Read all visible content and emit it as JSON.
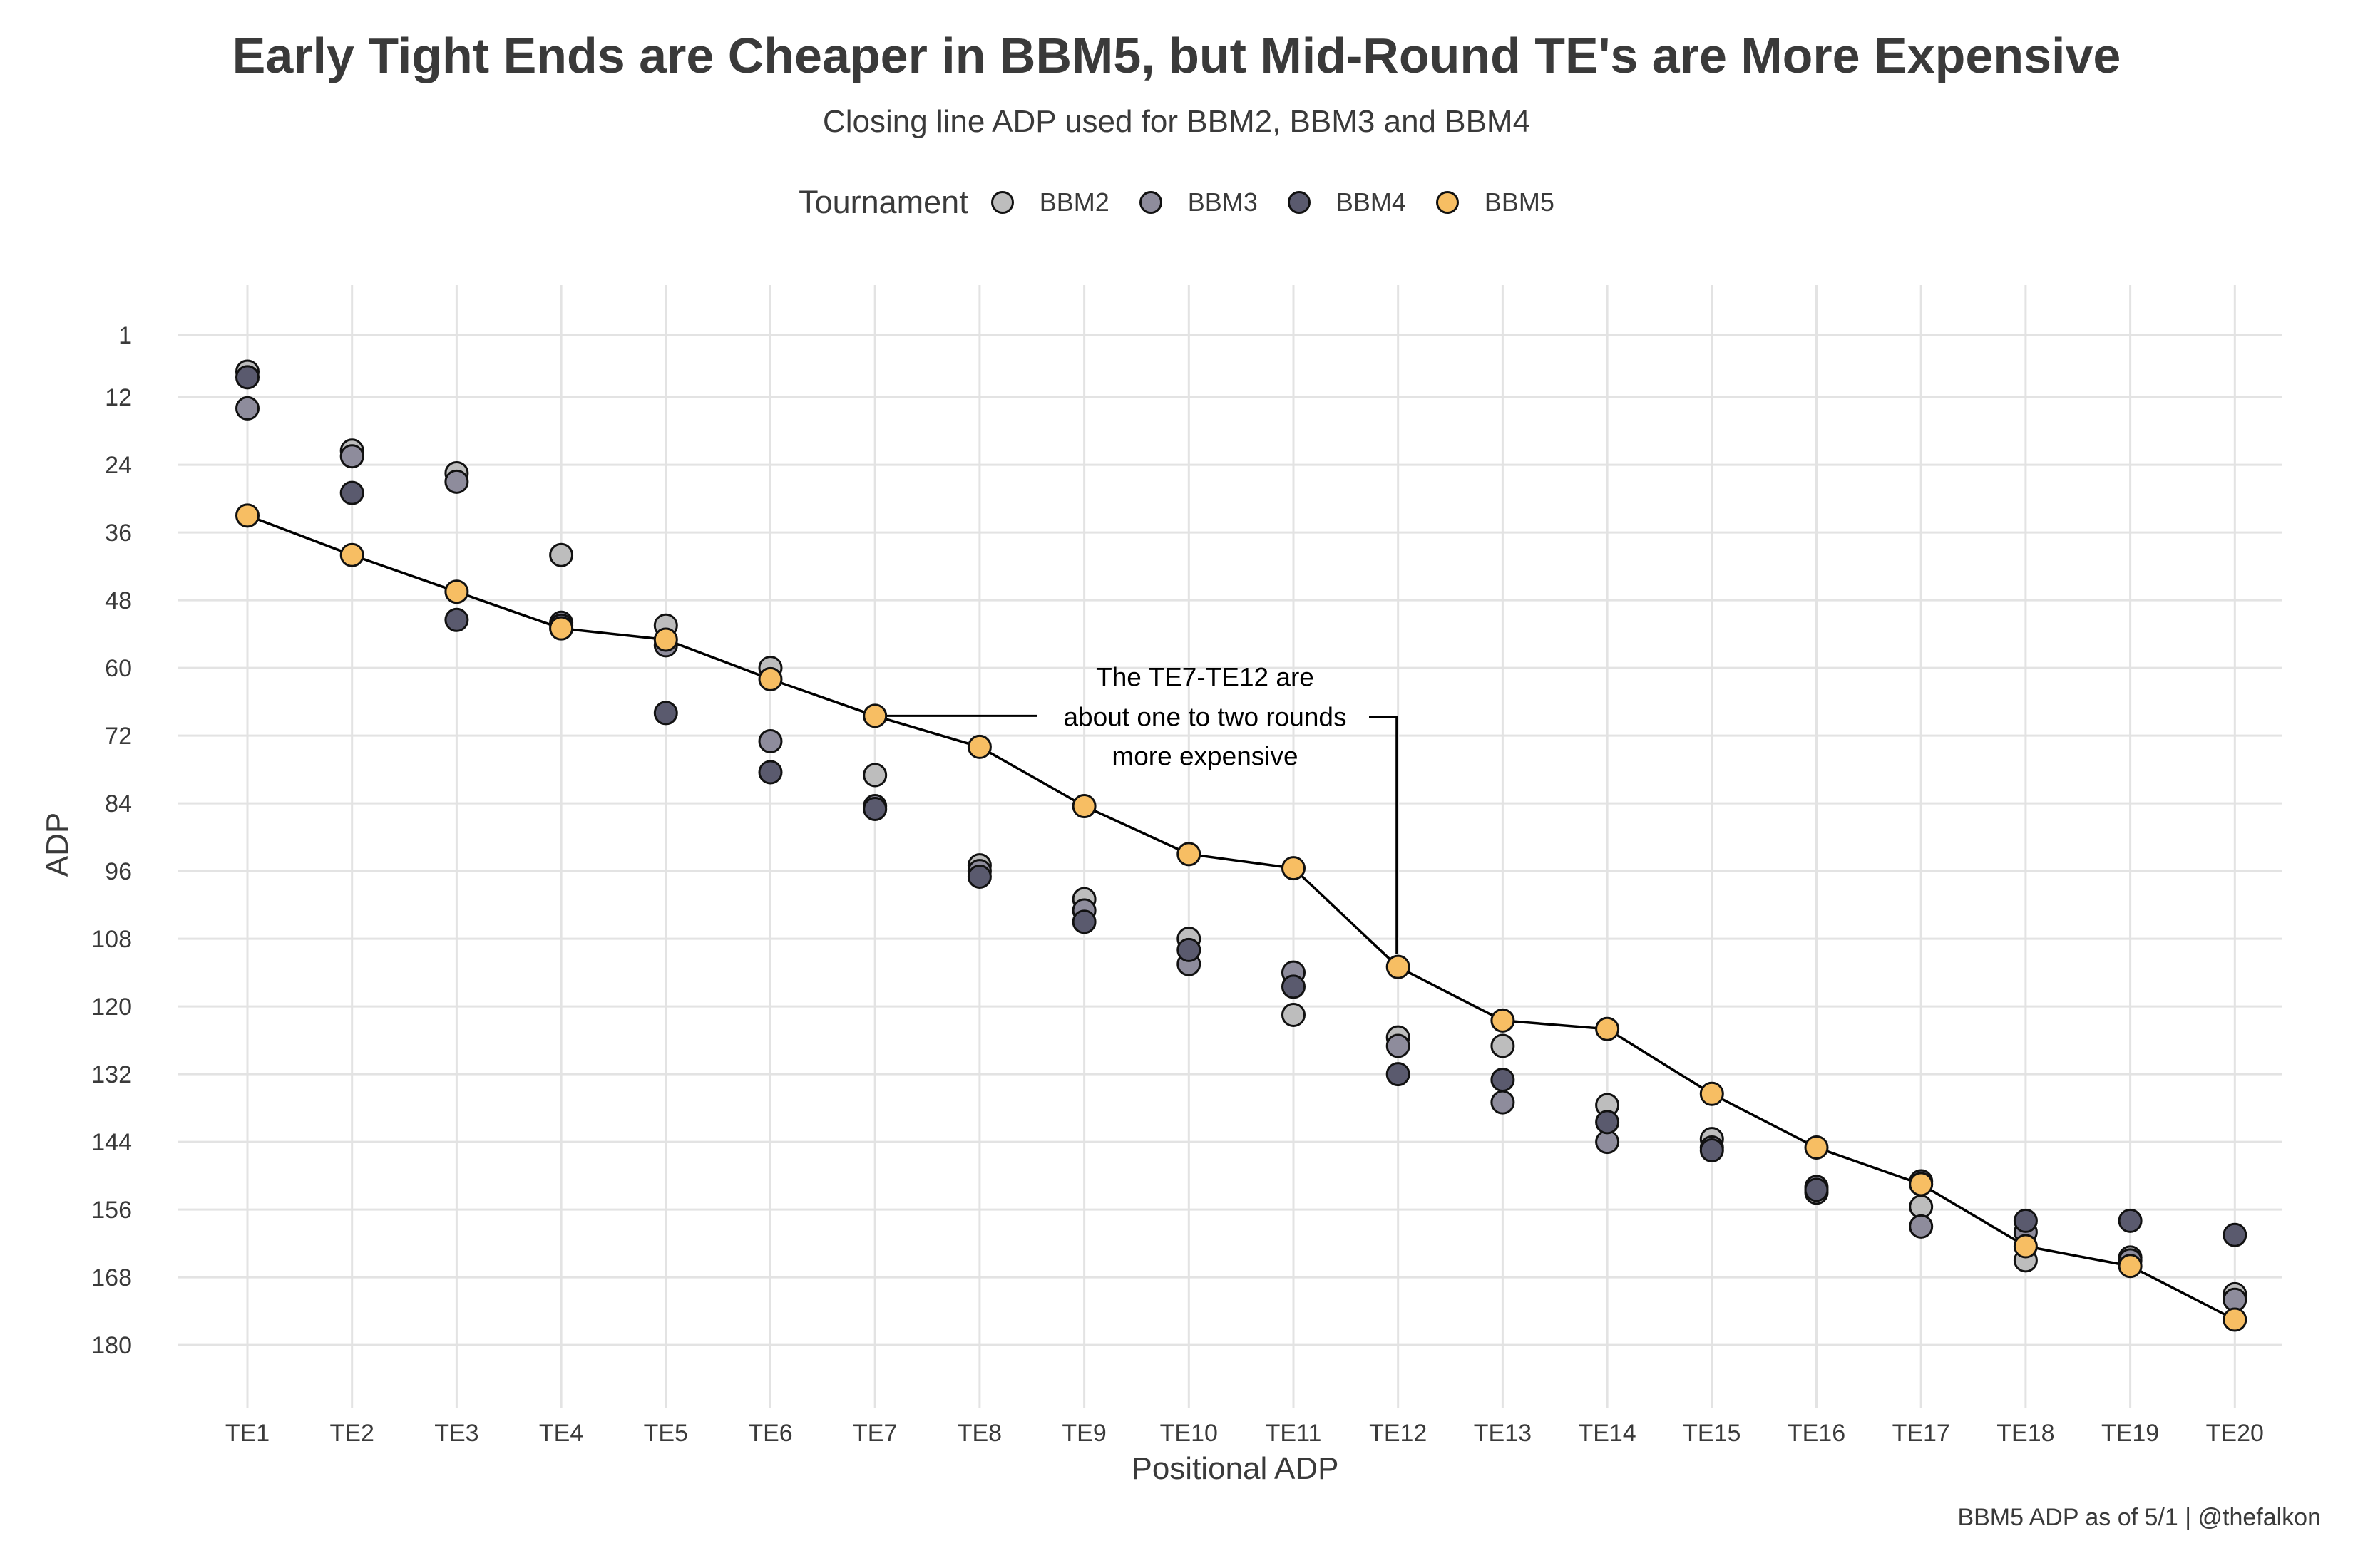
{
  "title": "Early Tight Ends are Cheaper in BBM5, but Mid-Round TE's are More Expensive",
  "subtitle": "Closing line ADP used for BBM2, BBM3 and BBM4",
  "legend": {
    "title": "Tournament",
    "items": [
      {
        "label": "BBM2",
        "color": "#bdbdbd"
      },
      {
        "label": "BBM3",
        "color": "#8e8c9c"
      },
      {
        "label": "BBM4",
        "color": "#5a5a6e"
      },
      {
        "label": "BBM5",
        "color": "#f7be63"
      }
    ],
    "position": "top"
  },
  "caption": "BBM5 ADP as of 5/1 | @thefalkon",
  "annotation": {
    "lines": [
      "The TE7-TE12 are",
      "about one to two rounds",
      "more expensive"
    ]
  },
  "chart_data": {
    "type": "scatter",
    "xlabel": "Positional ADP",
    "ylabel": "ADP",
    "categories": [
      "TE1",
      "TE2",
      "TE3",
      "TE4",
      "TE5",
      "TE6",
      "TE7",
      "TE8",
      "TE9",
      "TE10",
      "TE11",
      "TE12",
      "TE13",
      "TE14",
      "TE15",
      "TE16",
      "TE17",
      "TE18",
      "TE19",
      "TE20"
    ],
    "yticks": [
      1,
      12,
      24,
      36,
      48,
      60,
      72,
      84,
      96,
      108,
      120,
      132,
      144,
      156,
      168,
      180
    ],
    "ylim": [
      -3,
      189
    ],
    "y_reversed": true,
    "grid": true,
    "series": [
      {
        "name": "BBM2",
        "color": "#bdbdbd",
        "values": [
          7.5,
          21.5,
          25.5,
          40.0,
          52.5,
          60.0,
          79.0,
          95.0,
          101.0,
          108.0,
          121.5,
          125.5,
          127.0,
          137.5,
          143.5,
          153.0,
          155.5,
          165.0,
          164.5,
          171.0
        ]
      },
      {
        "name": "BBM3",
        "color": "#8e8c9c",
        "values": [
          14.0,
          22.5,
          27.0,
          52.0,
          56.0,
          73.0,
          84.5,
          96.0,
          103.0,
          112.5,
          114.0,
          127.0,
          137.0,
          144.0,
          145.0,
          152.0,
          159.0,
          160.0,
          165.0,
          172.0
        ]
      },
      {
        "name": "BBM4",
        "color": "#5a5a6e",
        "values": [
          8.5,
          29.0,
          51.5,
          52.5,
          68.0,
          78.5,
          85.0,
          97.0,
          105.0,
          110.0,
          116.5,
          132.0,
          133.0,
          140.5,
          145.5,
          152.5,
          151.0,
          158.0,
          158.0,
          160.5
        ]
      },
      {
        "name": "BBM5",
        "color": "#f7be63",
        "values": [
          33.0,
          40.0,
          46.5,
          53.0,
          55.0,
          62.0,
          68.5,
          74.0,
          84.5,
          93.0,
          95.5,
          113.0,
          122.5,
          124.0,
          135.5,
          145.0,
          151.5,
          162.5,
          166.0,
          175.5
        ],
        "line": true
      }
    ]
  }
}
